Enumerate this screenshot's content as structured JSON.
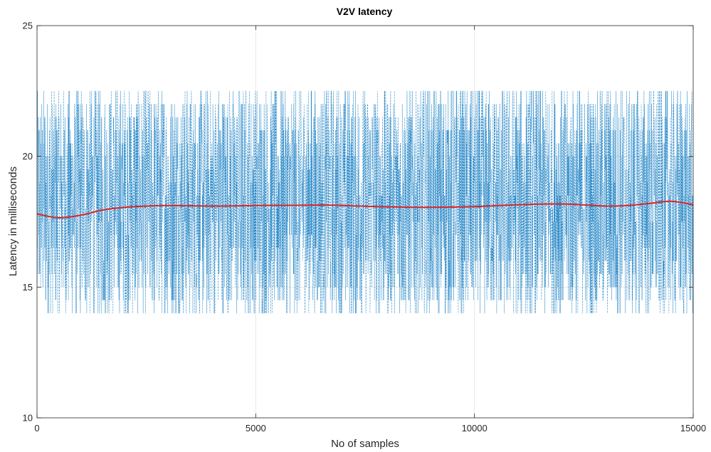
{
  "chart_data": {
    "type": "line",
    "title": "V2V latency",
    "xlabel": "No of samples",
    "ylabel": "Latency in milliseconds",
    "xlim": [
      0,
      15000
    ],
    "ylim": [
      10,
      25
    ],
    "xticks": [
      0,
      5000,
      10000,
      15000
    ],
    "yticks": [
      10,
      15,
      20,
      25
    ],
    "xtick_labels": [
      "0",
      "5000",
      "10000",
      "15000"
    ],
    "ytick_labels": [
      "10",
      "15",
      "20",
      "25"
    ],
    "grid": true,
    "legend": "none",
    "series": [
      {
        "style": "dashed",
        "color": "#0072bd",
        "n_samples": 15000,
        "value_range": [
          14,
          22.5
        ],
        "discrete_levels": [
          14,
          14.5,
          15,
          15.5,
          16,
          16.5,
          17,
          17.5,
          18,
          18.5,
          19,
          19.5,
          20,
          20.5,
          21,
          21.5,
          22,
          22.5
        ]
      },
      {
        "style": "solid",
        "color": "#d62728",
        "x": [
          0,
          500,
          1000,
          1500,
          2000,
          2500,
          3000,
          4000,
          5000,
          6000,
          6500,
          7000,
          8000,
          9000,
          10000,
          11000,
          12000,
          13000,
          13500,
          14000,
          14500,
          15000
        ],
        "y": [
          17.8,
          17.65,
          17.75,
          17.95,
          18.05,
          18.1,
          18.12,
          18.1,
          18.12,
          18.13,
          18.14,
          18.12,
          18.07,
          18.05,
          18.08,
          18.15,
          18.18,
          18.1,
          18.12,
          18.2,
          18.28,
          18.15
        ]
      }
    ]
  }
}
